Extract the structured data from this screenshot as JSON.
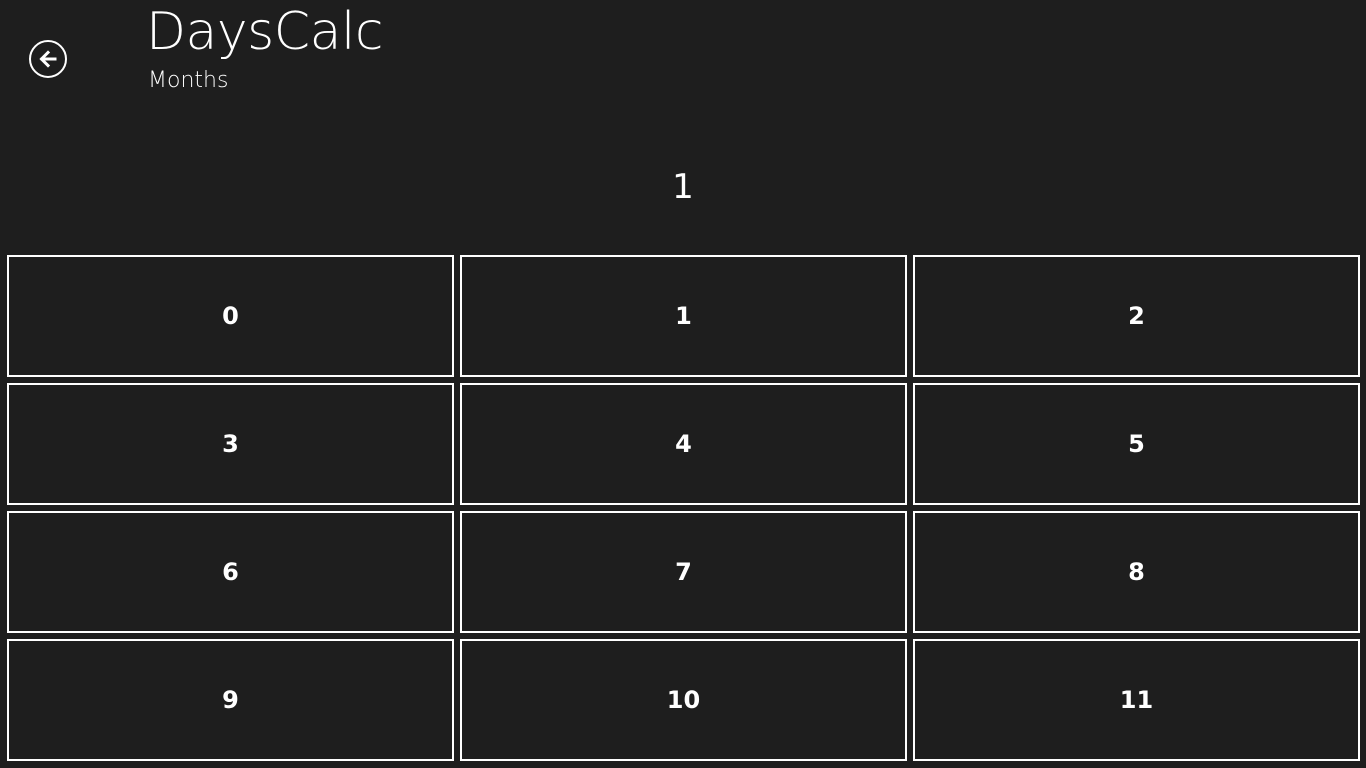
{
  "header": {
    "title": "DaysCalc",
    "subtitle": "Months",
    "back_icon": "arrow-left-circle-icon"
  },
  "display": {
    "value": "1"
  },
  "keypad": {
    "keys": [
      "0",
      "1",
      "2",
      "3",
      "4",
      "5",
      "6",
      "7",
      "8",
      "9",
      "10",
      "11"
    ]
  },
  "colors": {
    "background": "#1e1e1e",
    "foreground": "#ffffff"
  }
}
